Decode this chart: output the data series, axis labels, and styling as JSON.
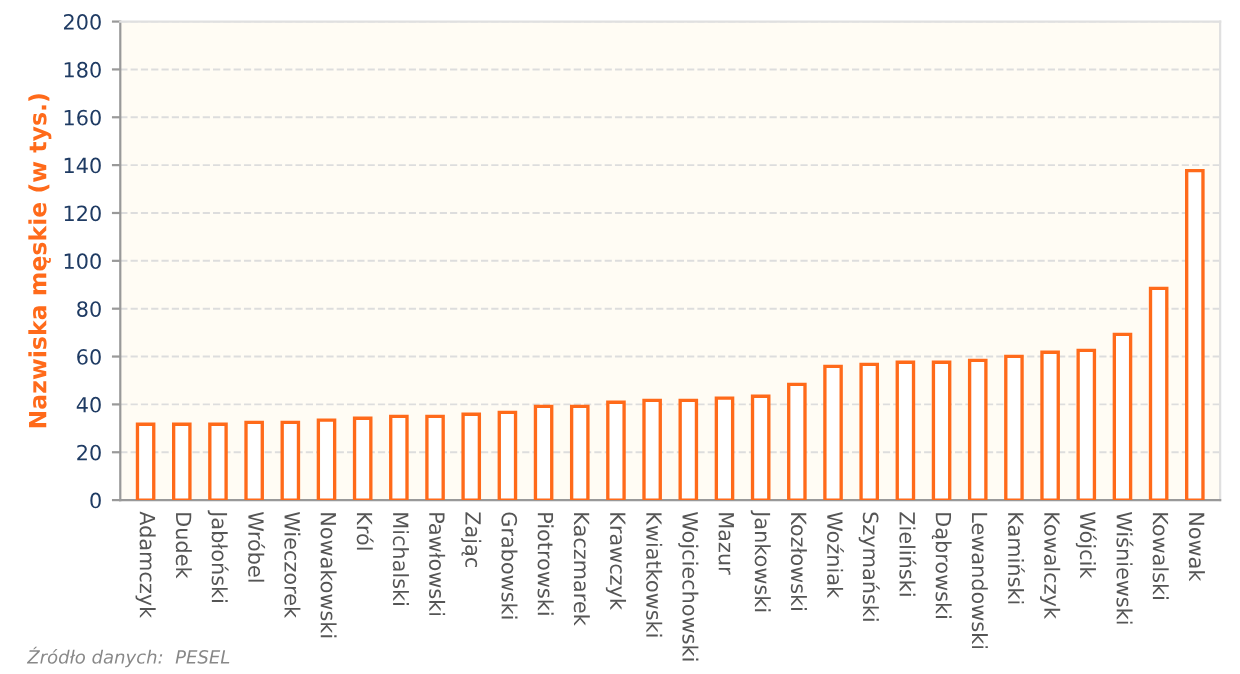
{
  "chart_data": {
    "type": "bar",
    "ylabel": "Nazwiska męskie (w tys.)",
    "categories": [
      "Adamczyk",
      "Dudek",
      "Jabłoński",
      "Wróbel",
      "Wieczorek",
      "Nowakowski",
      "Król",
      "Michalski",
      "Pawłowski",
      "Zając",
      "Grabowski",
      "Piotrowski",
      "Kaczmarek",
      "Krawczyk",
      "Kwiatkowski",
      "Wojciechowski",
      "Mazur",
      "Jankowski",
      "Kozłowski",
      "Woźniak",
      "Szymański",
      "Zieliński",
      "Dąbrowski",
      "Lewandowski",
      "Kamiński",
      "Kowalczyk",
      "Wójcik",
      "Wiśniewski",
      "Kowalski",
      "Nowak"
    ],
    "values": [
      31.7,
      31.7,
      31.7,
      32.5,
      32.5,
      33.4,
      34.2,
      35.0,
      35.0,
      35.9,
      36.7,
      39.2,
      39.2,
      40.9,
      41.7,
      41.7,
      42.6,
      43.4,
      48.4,
      55.9,
      56.7,
      57.6,
      57.6,
      58.4,
      60.1,
      61.8,
      62.6,
      69.3,
      88.5,
      137.7
    ],
    "color": "#ff6a1a",
    "ylim": [
      0,
      200
    ],
    "yticks": [
      0,
      20,
      40,
      60,
      80,
      100,
      120,
      140,
      160,
      180,
      200
    ],
    "grid": "y",
    "annotations": [
      "Źródło danych:  PESEL"
    ]
  }
}
